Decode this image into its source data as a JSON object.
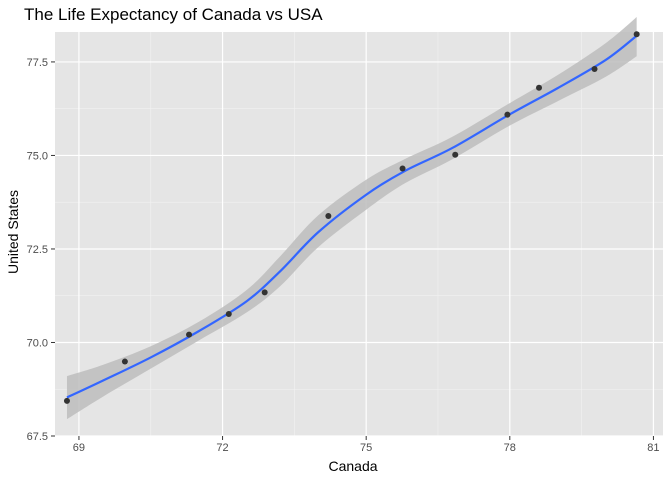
{
  "chart_data": {
    "type": "scatter",
    "title": "The Life Expectancy of Canada vs USA",
    "xlabel": "Canada",
    "ylabel": "United States",
    "xlim": [
      68.5,
      81.2
    ],
    "ylim": [
      67.5,
      78.3
    ],
    "x_ticks": [
      69,
      72,
      75,
      78,
      81
    ],
    "x_tick_labels": [
      "69",
      "72",
      "75",
      "78",
      "81"
    ],
    "y_ticks": [
      67.5,
      70.0,
      72.5,
      75.0,
      77.5
    ],
    "y_tick_labels": [
      "67.5",
      "70.0",
      "72.5",
      "75.0",
      "77.5"
    ],
    "grid": true,
    "background": "#e5e5e5",
    "points_color": "#333333",
    "line_color": "#3366ff",
    "band_color": "#bdbdbd",
    "points": [
      {
        "x": 68.75,
        "y": 68.44
      },
      {
        "x": 69.96,
        "y": 69.49
      },
      {
        "x": 71.3,
        "y": 70.21
      },
      {
        "x": 72.13,
        "y": 70.76
      },
      {
        "x": 72.88,
        "y": 71.34
      },
      {
        "x": 74.21,
        "y": 73.38
      },
      {
        "x": 75.76,
        "y": 74.65
      },
      {
        "x": 76.86,
        "y": 75.02
      },
      {
        "x": 77.95,
        "y": 76.09
      },
      {
        "x": 78.61,
        "y": 76.81
      },
      {
        "x": 79.77,
        "y": 77.31
      },
      {
        "x": 80.65,
        "y": 78.24
      }
    ],
    "smooth": {
      "method": "loess",
      "x": [
        68.75,
        69.5,
        70.5,
        71.5,
        72.5,
        73.2,
        74.0,
        75.0,
        75.8,
        76.8,
        78.0,
        79.0,
        80.0,
        80.65
      ],
      "y": [
        68.53,
        68.98,
        69.6,
        70.3,
        71.1,
        71.9,
        72.95,
        73.95,
        74.58,
        75.2,
        76.1,
        76.8,
        77.55,
        78.2
      ],
      "lower": [
        67.95,
        68.55,
        69.3,
        70.05,
        70.8,
        71.5,
        72.55,
        73.55,
        74.25,
        74.9,
        75.8,
        76.45,
        77.1,
        77.65
      ],
      "upper": [
        69.1,
        69.4,
        69.9,
        70.55,
        71.4,
        72.3,
        73.4,
        74.35,
        74.9,
        75.5,
        76.4,
        77.15,
        78.0,
        78.7
      ]
    }
  }
}
